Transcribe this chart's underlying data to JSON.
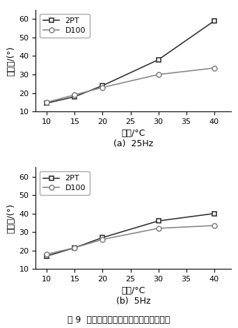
{
  "temperatures": [
    10,
    15,
    20,
    30,
    40
  ],
  "chart_a": {
    "subtitle": "(a)  25Hz",
    "2PT": [
      14.5,
      18.0,
      24.0,
      38.0,
      59.0
    ],
    "D100": [
      15.0,
      19.0,
      23.0,
      30.0,
      33.5
    ]
  },
  "chart_b": {
    "subtitle": "(b)  5Hz",
    "2PT": [
      17.0,
      21.5,
      27.0,
      36.0,
      40.0
    ],
    "D100": [
      18.0,
      21.5,
      26.0,
      32.0,
      33.5
    ]
  },
  "ylabel": "相位角/(°)",
  "xlabel": "温度/°C",
  "ylim": [
    10,
    65
  ],
  "yticks": [
    10,
    20,
    30,
    40,
    50,
    60
  ],
  "xticks": [
    10,
    15,
    20,
    25,
    30,
    35,
    40
  ],
  "xlim": [
    8,
    43
  ],
  "line_color_2PT": "#333333",
  "line_color_D100": "#888888",
  "marker_2PT": "s",
  "marker_D100": "o",
  "legend_2PT": "2PT",
  "legend_D100": "D100",
  "figure_title": "图 9  荷载频率对氥青混合料相位角的影响",
  "background_color": "#ffffff"
}
